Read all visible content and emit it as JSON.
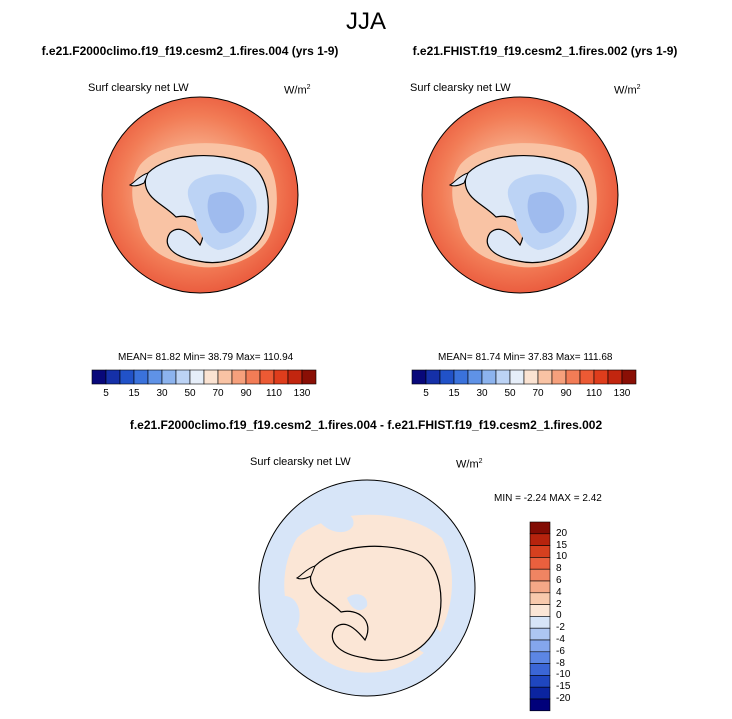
{
  "figure_title": "JJA",
  "panel1": {
    "title": "f.e21.F2000climo.f19_f19.cesm2_1.fires.004 (yrs 1-9)",
    "variable": "Surf clearsky net LW",
    "units_base": "W/m",
    "units_exp": "2",
    "stats": "MEAN= 81.82  Min= 38.79  Max= 110.94"
  },
  "panel2": {
    "title": "f.e21.FHIST.f19_f19.cesm2_1.fires.002 (yrs 1-9)",
    "variable": "Surf clearsky net LW",
    "units_base": "W/m",
    "units_exp": "2",
    "stats": "MEAN= 81.74  Min= 37.83  Max= 111.68"
  },
  "diff_panel": {
    "title": "f.e21.F2000climo.f19_f19.cesm2_1.fires.004 - f.e21.FHIST.f19_f19.cesm2_1.fires.002",
    "variable": "Surf clearsky net LW",
    "units_base": "W/m",
    "units_exp": "2",
    "stats": "MIN =  -2.24 MAX =   2.42"
  },
  "colorbar_abs": {
    "colors": [
      "#08087a",
      "#1530a8",
      "#2152c8",
      "#3a72dc",
      "#5f92e6",
      "#8cb3ee",
      "#bcd3f5",
      "#e6eef9",
      "#fbe3d2",
      "#f9c3a4",
      "#f6a07c",
      "#f27c56",
      "#ec5a34",
      "#df3d1c",
      "#c2260f",
      "#8a0f05"
    ],
    "tick_labels": [
      "5",
      "15",
      "30",
      "50",
      "70",
      "90",
      "110",
      "130"
    ]
  },
  "colorbar_diff": {
    "colors": [
      "#00007a",
      "#0b24a0",
      "#1f46c0",
      "#3b66d6",
      "#5c86e4",
      "#84a6ec",
      "#adc6f2",
      "#d7e5f8",
      "#fbe6d6",
      "#f8c9ac",
      "#f5a887",
      "#f08462",
      "#e9603e",
      "#d6401f",
      "#b6230d",
      "#820c04"
    ],
    "tick_labels": [
      "20",
      "15",
      "10",
      "8",
      "6",
      "4",
      "2",
      "0",
      "-2",
      "-4",
      "-6",
      "-8",
      "-10",
      "-15",
      "-20"
    ]
  },
  "colors": {
    "ocean_warm": "#e9563a",
    "ocean_mid": "#f27c56",
    "coast_band": "#f9c3a4",
    "ice_light": "#dde8f7",
    "ice_mid": "#bcd3f5",
    "ice_deep": "#9fbbee",
    "diff_pos": "#fbe6d6",
    "diff_neg": "#d7e5f8",
    "coastline": "#000000"
  }
}
